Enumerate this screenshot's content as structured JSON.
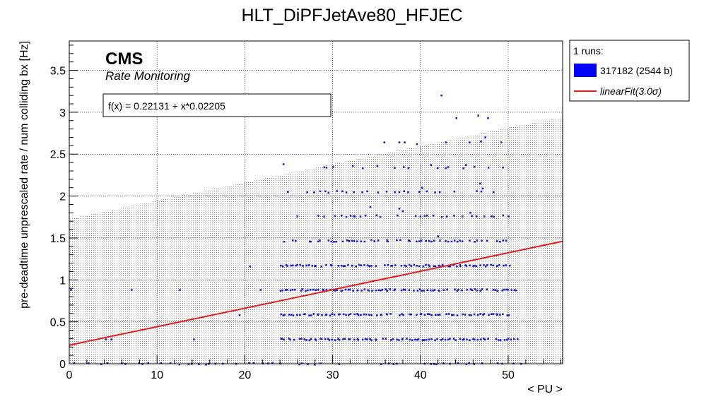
{
  "chart_data": {
    "type": "scatter",
    "title": "HLT_DiPFJetAve80_HFJEC",
    "xlabel": "< PU >",
    "ylabel": "pre-deadtime unprescaled rate / num colliding bx [Hz]",
    "xlim": [
      0,
      56.2
    ],
    "ylim": [
      0,
      3.85
    ],
    "x_ticks": [
      0,
      10,
      20,
      30,
      40,
      50
    ],
    "y_ticks": [
      0,
      0.5,
      1,
      1.5,
      2,
      2.5,
      3,
      3.5
    ],
    "x_tick_labels": [
      "0",
      "10",
      "20",
      "30",
      "40",
      "50"
    ],
    "y_tick_labels": [
      "0",
      "0.5",
      "1",
      "1.5",
      "2",
      "2.5",
      "3",
      "3.5"
    ],
    "grid": true,
    "cms_label": "CMS",
    "cms_sublabel": "Rate Monitoring",
    "fit_label": "f(x) = 0.22131 + x*0.02205",
    "fit": {
      "intercept": 0.22131,
      "slope": 0.02205,
      "x_range": [
        0,
        56.2
      ]
    },
    "band": {
      "upper_at_xmin": 1.73,
      "upper_at_xmax": 2.95,
      "lower_at_xmin": 0,
      "lower_at_xmax": 0
    },
    "legend": {
      "position": "top-right",
      "header": "1 runs:",
      "entries": [
        {
          "label": "317182 (2544 b)",
          "marker": "box",
          "color": "#0000ff"
        },
        {
          "label": "linearFit(3.0σ)",
          "marker": "line",
          "color": "#e41a1c"
        }
      ]
    },
    "series": [
      {
        "name": "317182 (2544 b)",
        "color": "#1a1acc",
        "bands": [
          {
            "y": 0.0,
            "x_from": 0,
            "x_to": 52,
            "step": 0.5,
            "density": 0.45
          },
          {
            "y": 0.29,
            "x_from": 24,
            "x_to": 51,
            "step": 0.3,
            "density": 0.92
          },
          {
            "y": 0.585,
            "x_from": 24,
            "x_to": 50.2,
            "step": 0.3,
            "density": 0.92
          },
          {
            "y": 0.88,
            "x_from": 24,
            "x_to": 51,
            "step": 0.3,
            "density": 0.92
          },
          {
            "y": 1.17,
            "x_from": 24,
            "x_to": 50.2,
            "step": 0.3,
            "density": 0.88
          },
          {
            "y": 1.465,
            "x_from": 24.5,
            "x_to": 50,
            "step": 0.35,
            "density": 0.75
          },
          {
            "y": 1.76,
            "x_from": 26,
            "x_to": 50,
            "step": 0.45,
            "density": 0.6
          },
          {
            "y": 2.05,
            "x_from": 27,
            "x_to": 49,
            "step": 0.55,
            "density": 0.5
          },
          {
            "y": 2.34,
            "x_from": 28,
            "x_to": 49,
            "step": 0.7,
            "density": 0.4
          }
        ],
        "points": [
          [
            0.2,
            0.88
          ],
          [
            4.2,
            0.29
          ],
          [
            4.8,
            0.29
          ],
          [
            7.1,
            0.88
          ],
          [
            12.6,
            0.88
          ],
          [
            14.2,
            0.29
          ],
          [
            17.5,
            0.0
          ],
          [
            19.4,
            0.58
          ],
          [
            20.6,
            1.16
          ],
          [
            21.8,
            0.88
          ],
          [
            24.4,
            2.38
          ],
          [
            24.9,
            2.05
          ],
          [
            29.3,
            2.34
          ],
          [
            30.5,
            2.06
          ],
          [
            32.3,
            2.36
          ],
          [
            35.1,
            2.36
          ],
          [
            35.9,
            2.64
          ],
          [
            37.6,
            2.64
          ],
          [
            38.2,
            2.64
          ],
          [
            39.6,
            2.62
          ],
          [
            41.2,
            2.37
          ],
          [
            42.4,
            3.2
          ],
          [
            42.9,
            2.64
          ],
          [
            44.1,
            2.93
          ],
          [
            45.2,
            2.37
          ],
          [
            45.6,
            2.64
          ],
          [
            46.6,
            2.96
          ],
          [
            46.9,
            2.65
          ],
          [
            47.4,
            2.7
          ],
          [
            47.7,
            2.93
          ],
          [
            49.2,
            2.64
          ],
          [
            49.4,
            2.34
          ],
          [
            46.8,
            2.15
          ],
          [
            47.1,
            2.09
          ],
          [
            38.0,
            1.82
          ],
          [
            37.6,
            1.85
          ],
          [
            42.0,
            1.52
          ],
          [
            40.2,
            2.1
          ],
          [
            45.7,
            1.8
          ],
          [
            34.3,
            1.87
          ]
        ]
      }
    ]
  }
}
